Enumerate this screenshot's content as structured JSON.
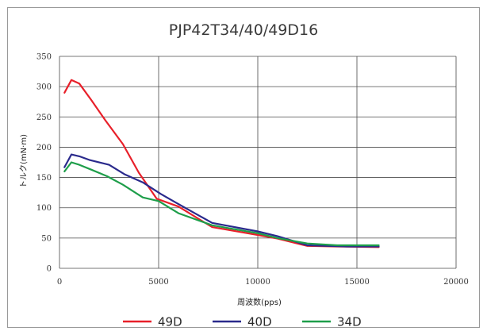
{
  "chart_data": {
    "type": "line",
    "title": "PJP42T34/40/49D16",
    "xlabel": "周波数(pps)",
    "ylabel": "トルク(mN·m)",
    "xlim": [
      0,
      20000
    ],
    "ylim": [
      0,
      350
    ],
    "x_ticks": [
      "0",
      "5000",
      "10000",
      "15000",
      "20000"
    ],
    "y_ticks": [
      "0",
      "50",
      "100",
      "150",
      "200",
      "250",
      "300",
      "350"
    ],
    "grid": true,
    "legend_position": "bottom",
    "series": [
      {
        "name": "49D",
        "color": "#e8202a",
        "points": [
          [
            250,
            290
          ],
          [
            600,
            311
          ],
          [
            1000,
            305
          ],
          [
            1600,
            278
          ],
          [
            2300,
            245
          ],
          [
            3200,
            205
          ],
          [
            4000,
            158
          ],
          [
            4900,
            115
          ],
          [
            6000,
            102
          ],
          [
            7700,
            68
          ],
          [
            10000,
            55
          ],
          [
            11000,
            49
          ],
          [
            12500,
            37
          ],
          [
            14000,
            36
          ],
          [
            16100,
            35
          ]
        ]
      },
      {
        "name": "40D",
        "color": "#2a2a8c",
        "points": [
          [
            250,
            167
          ],
          [
            600,
            188
          ],
          [
            1000,
            185
          ],
          [
            1500,
            179
          ],
          [
            2500,
            171
          ],
          [
            3300,
            155
          ],
          [
            4200,
            142
          ],
          [
            5100,
            123
          ],
          [
            6000,
            106
          ],
          [
            7700,
            75
          ],
          [
            10000,
            61
          ],
          [
            11000,
            53
          ],
          [
            12500,
            38
          ],
          [
            14500,
            36
          ],
          [
            16100,
            36
          ]
        ]
      },
      {
        "name": "34D",
        "color": "#1e9e4a",
        "points": [
          [
            250,
            160
          ],
          [
            600,
            175
          ],
          [
            1000,
            171
          ],
          [
            1600,
            163
          ],
          [
            2400,
            152
          ],
          [
            3200,
            138
          ],
          [
            4200,
            117
          ],
          [
            5000,
            111
          ],
          [
            6000,
            91
          ],
          [
            7700,
            71
          ],
          [
            10000,
            58
          ],
          [
            11000,
            50
          ],
          [
            12500,
            41
          ],
          [
            14000,
            38
          ],
          [
            16100,
            38
          ]
        ]
      }
    ]
  }
}
